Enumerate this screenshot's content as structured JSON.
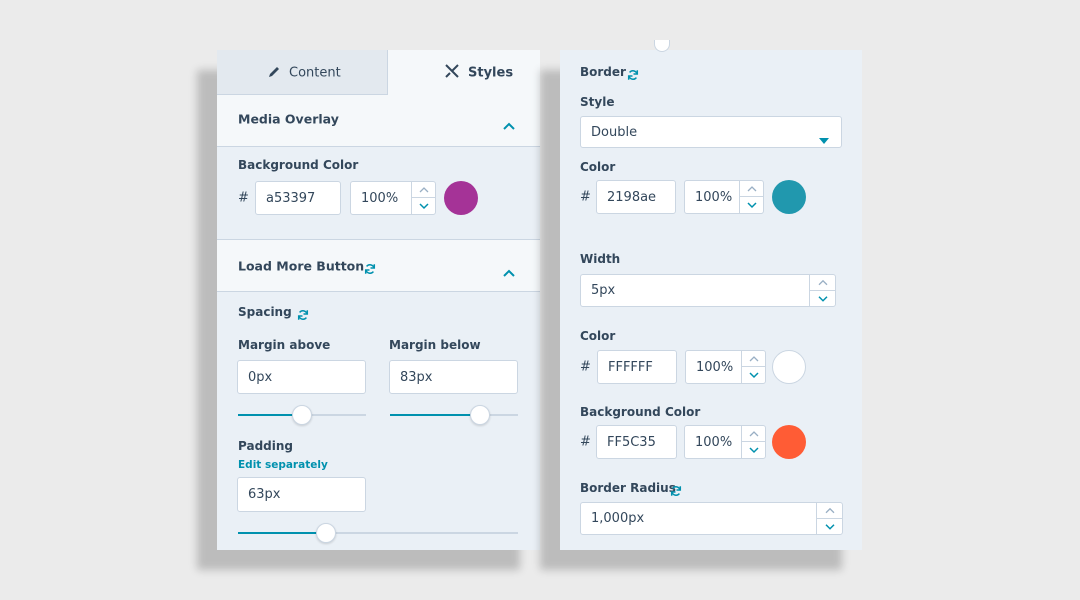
{
  "left_panel": {
    "tabs": {
      "content": "Content",
      "styles": "Styles"
    },
    "media_overlay": {
      "title": "Media Overlay",
      "background_color": {
        "label": "Background Color",
        "prefix": "#",
        "hex": "a53397",
        "opacity": "100%"
      }
    },
    "load_more_button": {
      "title": "Load More Button",
      "spacing": {
        "title": "Spacing",
        "margin_above": {
          "label": "Margin above",
          "value": "0px"
        },
        "margin_below": {
          "label": "Margin below",
          "value": "83px"
        }
      },
      "padding": {
        "label": "Padding",
        "link": "Edit separately",
        "value": "63px"
      }
    }
  },
  "right_panel": {
    "border": {
      "title": "Border",
      "style": {
        "label": "Style",
        "value": "Double"
      },
      "color": {
        "label": "Color",
        "prefix": "#",
        "hex": "2198ae",
        "opacity": "100%"
      },
      "width": {
        "label": "Width",
        "value": "5px"
      },
      "width_color": {
        "label": "Color",
        "prefix": "#",
        "hex": "FFFFFF",
        "opacity": "100%"
      },
      "background_color": {
        "label": "Background Color",
        "prefix": "#",
        "hex": "FF5C35",
        "opacity": "100%"
      },
      "border_radius": {
        "label": "Border Radius",
        "value": "1,000px"
      }
    }
  }
}
